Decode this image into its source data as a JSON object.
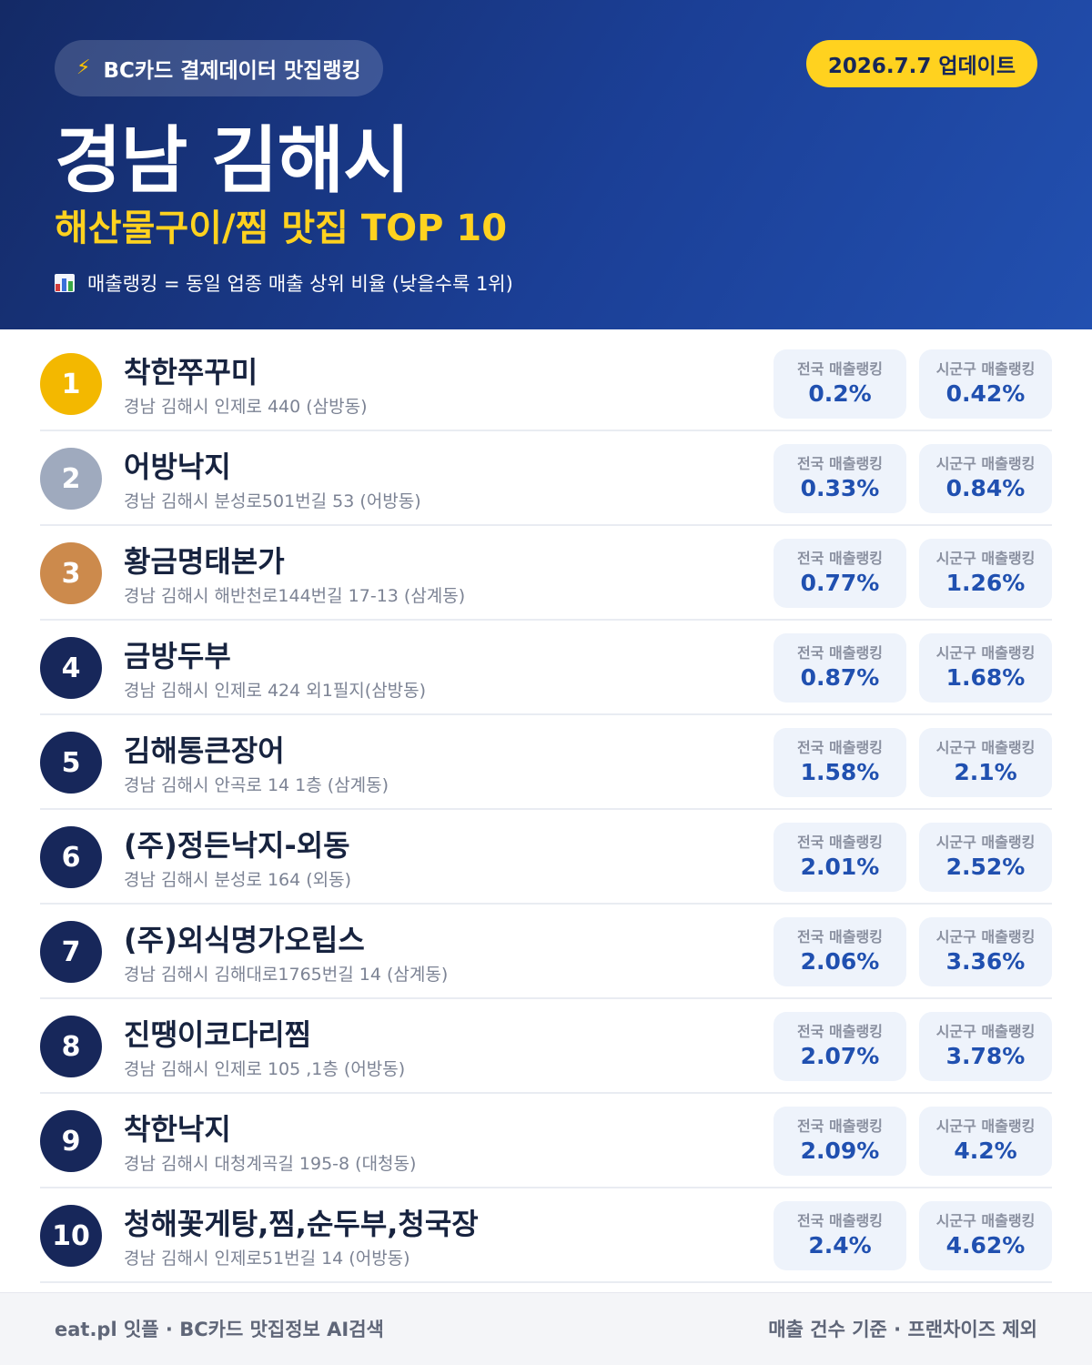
{
  "header": {
    "source_icon": "lightning-bolt-icon",
    "source_label": "BC카드 결제데이터 맛집랭킹",
    "update_label": "2026.7.7 업데이트",
    "title": "경남 김해시",
    "subtitle": "해산물구이/찜 맛집 TOP 10",
    "note_icon": "bar-chart-icon",
    "note": "매출랭킹 = 동일 업종 매출 상위 비율 (낮을수록 1위)"
  },
  "colors": {
    "header_dark": "#142a66",
    "header_light": "#2250b0",
    "accent_yellow": "#ffd21f",
    "gold": "#f3b800",
    "silver": "#9faabe",
    "bronze": "#cc8a4c",
    "navy": "#17275a",
    "value_blue": "#2050b0"
  },
  "stat_labels": {
    "national": "전국 매출랭킹",
    "local": "시군구 매출랭킹"
  },
  "restaurants": [
    {
      "rank": "1",
      "name": "착한쭈꾸미",
      "address": "경남 김해시 인제로 440 (삼방동)",
      "national": "0.2%",
      "local": "0.42%"
    },
    {
      "rank": "2",
      "name": "어방낙지",
      "address": "경남 김해시 분성로501번길 53 (어방동)",
      "national": "0.33%",
      "local": "0.84%"
    },
    {
      "rank": "3",
      "name": "황금명태본가",
      "address": "경남 김해시 해반천로144번길 17-13 (삼계동)",
      "national": "0.77%",
      "local": "1.26%"
    },
    {
      "rank": "4",
      "name": "금방두부",
      "address": "경남 김해시 인제로 424 외1필지(삼방동)",
      "national": "0.87%",
      "local": "1.68%"
    },
    {
      "rank": "5",
      "name": "김해통큰장어",
      "address": "경남 김해시 안곡로 14 1층 (삼계동)",
      "national": "1.58%",
      "local": "2.1%"
    },
    {
      "rank": "6",
      "name": "(주)정든낙지-외동",
      "address": "경남 김해시 분성로 164 (외동)",
      "national": "2.01%",
      "local": "2.52%"
    },
    {
      "rank": "7",
      "name": "(주)외식명가오립스",
      "address": "경남 김해시 김해대로1765번길 14 (삼계동)",
      "national": "2.06%",
      "local": "3.36%"
    },
    {
      "rank": "8",
      "name": "진땡이코다리찜",
      "address": "경남 김해시 인제로 105 ,1층 (어방동)",
      "national": "2.07%",
      "local": "3.78%"
    },
    {
      "rank": "9",
      "name": "착한낙지",
      "address": "경남 김해시 대청계곡길 195-8 (대청동)",
      "national": "2.09%",
      "local": "4.2%"
    },
    {
      "rank": "10",
      "name": "청해꽃게탕,찜,순두부,청국장",
      "address": "경남 김해시 인제로51번길 14 (어방동)",
      "national": "2.4%",
      "local": "4.62%"
    }
  ],
  "footer": {
    "left": "eat.pl 잇플 · BC카드 맛집정보 AI검색",
    "right": "매출 건수 기준 · 프랜차이즈 제외"
  }
}
